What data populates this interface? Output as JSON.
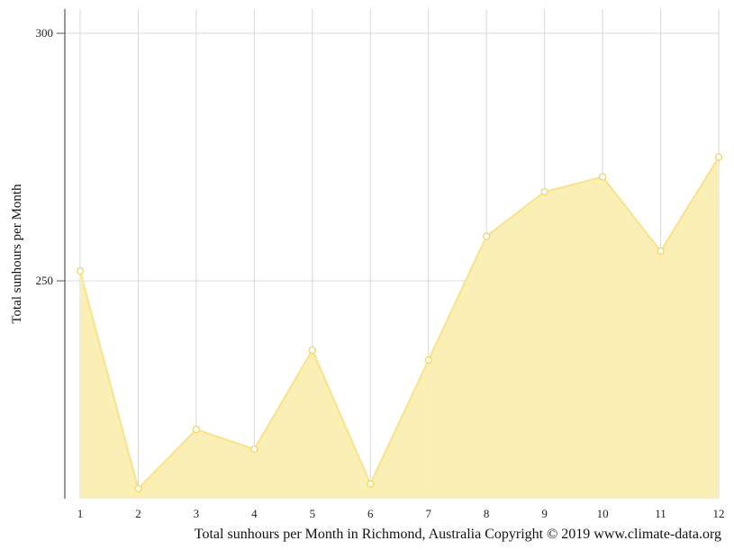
{
  "chart_data": {
    "type": "area",
    "x": [
      "1",
      "2",
      "3",
      "4",
      "5",
      "6",
      "7",
      "8",
      "9",
      "10",
      "11",
      "12"
    ],
    "series": [
      {
        "values": [
          252,
          208,
          220,
          216,
          236,
          209,
          234,
          259,
          268,
          271,
          256,
          275
        ]
      }
    ],
    "ylabel": "Total sunhours per Month",
    "caption": "Total sunhours per Month in Richmond, Australia Copyright © 2019 www.climate-data.org",
    "y_ticks": [
      250,
      300
    ],
    "ylim": [
      208,
      305
    ],
    "grid": true,
    "colors": {
      "fill": "#faeeb0",
      "line": "#f8e38a",
      "marker_stroke": "#f3d660",
      "grid": "#d8d8d8",
      "axis": "#555555"
    }
  }
}
